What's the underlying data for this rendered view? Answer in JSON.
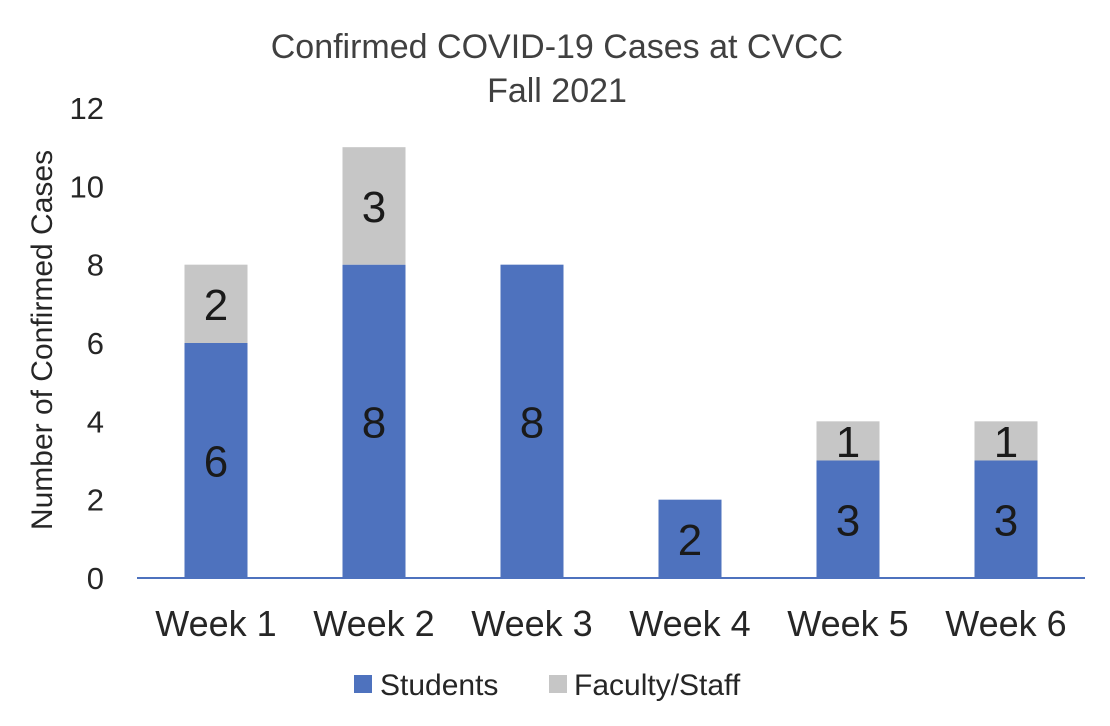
{
  "chart_data": {
    "type": "bar",
    "stacked": true,
    "title": [
      "Confirmed COVID-19 Cases at CVCC",
      "Fall 2021"
    ],
    "xlabel": "",
    "ylabel": "Number of Confirmed Cases",
    "categories": [
      "Week 1",
      "Week 2",
      "Week 3",
      "Week 4",
      "Week 5",
      "Week 6"
    ],
    "series": [
      {
        "name": "Students",
        "values": [
          6,
          8,
          8,
          2,
          3,
          3
        ],
        "data_labels": [
          "6",
          "8",
          "8",
          "2",
          "3",
          "3"
        ],
        "color": "#4e72be"
      },
      {
        "name": "Faculty/Staff",
        "values": [
          2,
          3,
          0,
          0,
          1,
          1
        ],
        "data_labels": [
          "2",
          "3",
          "",
          "",
          "1",
          "1"
        ],
        "color": "#c6c6c6"
      }
    ],
    "ylim": [
      0,
      12
    ],
    "yticks": [
      "0",
      "2",
      "4",
      "6",
      "8",
      "10",
      "12"
    ],
    "grid": false,
    "legend": "bottom",
    "axis_color": "#4e72be"
  }
}
